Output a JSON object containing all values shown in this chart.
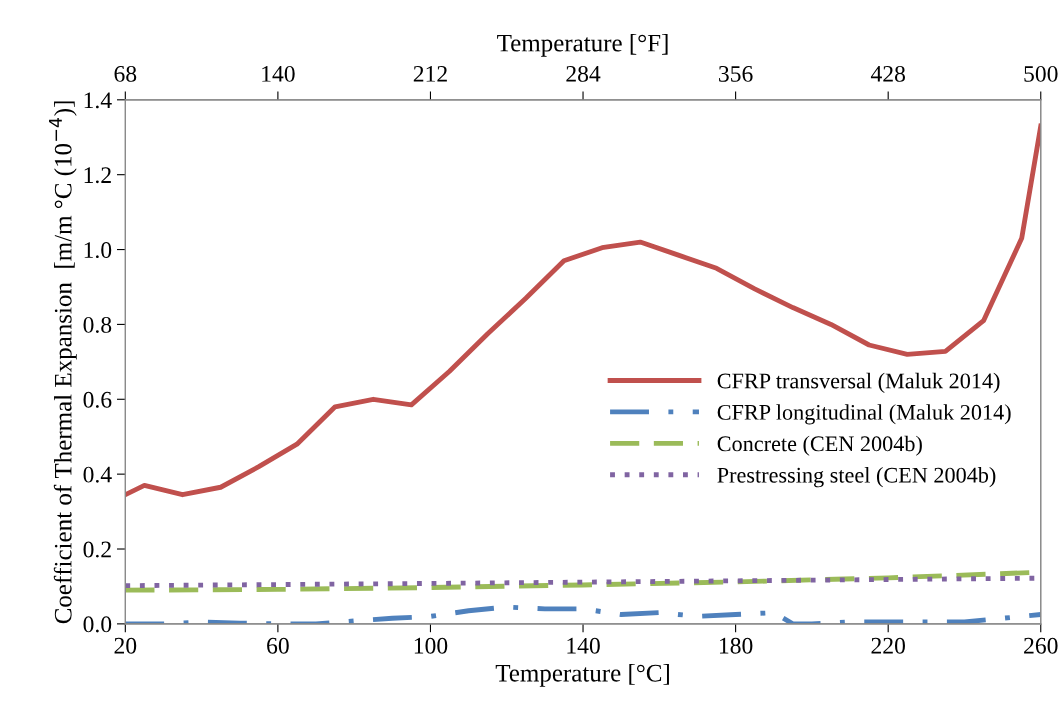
{
  "chart_data": {
    "type": "line",
    "xlabel": "Temperature [°C]",
    "x2label": "Temperature [°F]",
    "ylabel": "Coefficient of Thermal Expansion  [m/m °C (10$^{−4}$)]",
    "xlim": [
      20,
      260
    ],
    "xticks": [
      20,
      60,
      100,
      140,
      180,
      220,
      260
    ],
    "x2lim": [
      68,
      500
    ],
    "x2ticks": [
      68,
      140,
      212,
      284,
      356,
      428,
      500
    ],
    "ylim": [
      0,
      1.4
    ],
    "yticks": [
      {
        "value": 0,
        "label": "0.0"
      },
      {
        "value": 0.2,
        "label": "0.2"
      },
      {
        "value": 0.4,
        "label": "0.4"
      },
      {
        "value": 0.6,
        "label": "0.6"
      },
      {
        "value": 0.8,
        "label": "0.8"
      },
      {
        "value": 1.0,
        "label": "1.0"
      },
      {
        "value": 1.2,
        "label": "1.2"
      },
      {
        "value": 1.4,
        "label": "1.4"
      }
    ],
    "grid": false,
    "legend": "right",
    "marker": "none",
    "series": [
      {
        "name": "CFRP transversal (Maluk 2014)",
        "color": "#c0504d",
        "line_style": "solid",
        "x": [
          20,
          25,
          35,
          45,
          55,
          65,
          75,
          85,
          95,
          105,
          115,
          125,
          135,
          145,
          155,
          165,
          175,
          185,
          195,
          205,
          215,
          225,
          235,
          245,
          255,
          260
        ],
        "values": [
          0.345,
          0.37,
          0.345,
          0.365,
          0.42,
          0.48,
          0.58,
          0.6,
          0.585,
          0.675,
          0.775,
          0.87,
          0.97,
          1.005,
          1.02,
          0.985,
          0.95,
          0.895,
          0.845,
          0.8,
          0.745,
          0.72,
          0.728,
          0.81,
          1.03,
          1.33
        ]
      },
      {
        "name": "CFRP longitudinal (Maluk 2014)",
        "color": "#4f81bd",
        "line_style": "dashdot",
        "x": [
          20,
          30,
          40,
          50,
          60,
          70,
          80,
          90,
          100,
          110,
          120,
          130,
          140,
          150,
          160,
          170,
          180,
          190,
          195,
          200,
          210,
          220,
          230,
          240,
          250,
          260
        ],
        "values": [
          0.0,
          0.0,
          0.005,
          0.002,
          0.0,
          0.0,
          0.008,
          0.015,
          0.02,
          0.035,
          0.045,
          0.04,
          0.04,
          0.025,
          0.03,
          0.02,
          0.025,
          0.03,
          0.0,
          0.0,
          0.005,
          0.005,
          0.005,
          0.005,
          0.015,
          0.025
        ]
      },
      {
        "name": "Concrete (CEN 2004b)",
        "color": "#9bbb59",
        "line_style": "dashed",
        "x": [
          20,
          60,
          100,
          140,
          180,
          220,
          260
        ],
        "values": [
          0.09,
          0.092,
          0.097,
          0.104,
          0.112,
          0.123,
          0.138
        ]
      },
      {
        "name": "Prestressing steel (CEN 2004b)",
        "color": "#8064a2",
        "line_style": "dotted",
        "x": [
          20,
          100,
          180,
          260
        ],
        "values": [
          0.102,
          0.108,
          0.115,
          0.122
        ]
      }
    ]
  }
}
